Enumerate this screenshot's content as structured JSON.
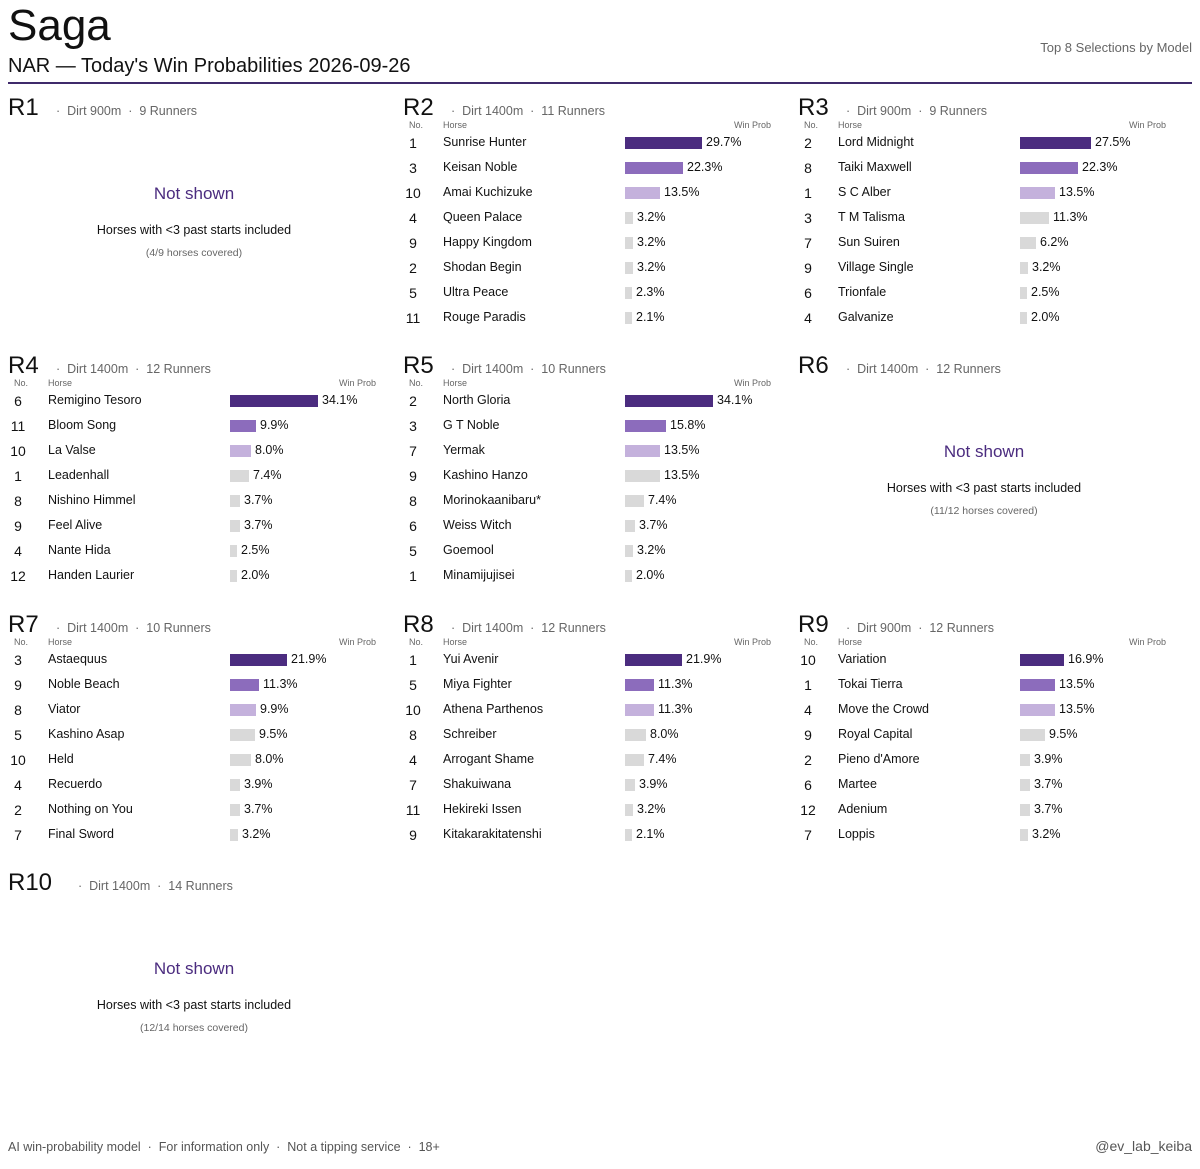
{
  "header": {
    "title": "Saga",
    "subtitle": "NAR — Today's Win Probabilities   2026-09-26",
    "top_right": "Top 8 Selections by Model"
  },
  "footer": {
    "left": "AI win-probability model  ·  For information only  ·  Not a tipping service  ·  18+",
    "right": "@ev_lab_keiba"
  },
  "column_labels": {
    "no": "No.",
    "horse": "Horse",
    "prob": "Win Prob"
  },
  "not_shown_title": "Not shown",
  "not_shown_note": "Horses with <3 past starts included",
  "colors": {
    "rank1": "#4b2c7f",
    "rank2": "#8c6cbc",
    "rank3": "#c4b1dc",
    "rest": "#d9d9d9",
    "accent": "#3f2a6b"
  },
  "chart_data": [
    {
      "type": "bar",
      "race": "R1",
      "meta": "·  Dirt 900m  ·  9 Runners",
      "shown": false,
      "coverage": "(4/9 horses covered)"
    },
    {
      "type": "bar",
      "race": "R2",
      "meta": "·  Dirt 1400m  ·  11 Runners",
      "shown": true,
      "numbers": [
        "1",
        "3",
        "10",
        "4",
        "9",
        "2",
        "5",
        "11"
      ],
      "categories": [
        "Sunrise Hunter",
        "Keisan Noble",
        "Amai Kuchizuke",
        "Queen Palace",
        "Happy Kingdom",
        "Shodan Begin",
        "Ultra Peace",
        "Rouge Paradis"
      ],
      "values": [
        29.7,
        22.3,
        13.5,
        3.2,
        3.2,
        3.2,
        2.3,
        2.1
      ]
    },
    {
      "type": "bar",
      "race": "R3",
      "meta": "·  Dirt 900m  ·  9 Runners",
      "shown": true,
      "numbers": [
        "2",
        "8",
        "1",
        "3",
        "7",
        "9",
        "6",
        "4"
      ],
      "categories": [
        "Lord Midnight",
        "Taiki Maxwell",
        "S C Alber",
        "T M Talisma",
        "Sun Suiren",
        "Village Single",
        "Trionfale",
        "Galvanize"
      ],
      "values": [
        27.5,
        22.3,
        13.5,
        11.3,
        6.2,
        3.2,
        2.5,
        2.0
      ]
    },
    {
      "type": "bar",
      "race": "R4",
      "meta": "·  Dirt 1400m  ·  12 Runners",
      "shown": true,
      "numbers": [
        "6",
        "11",
        "10",
        "1",
        "8",
        "9",
        "4",
        "12"
      ],
      "categories": [
        "Remigino Tesoro",
        "Bloom Song",
        "La Valse",
        "Leadenhall",
        "Nishino Himmel",
        "Feel Alive",
        "Nante Hida",
        "Handen Laurier"
      ],
      "values": [
        34.1,
        9.9,
        8.0,
        7.4,
        3.7,
        3.7,
        2.5,
        2.0
      ]
    },
    {
      "type": "bar",
      "race": "R5",
      "meta": "·  Dirt 1400m  ·  10 Runners",
      "shown": true,
      "numbers": [
        "2",
        "3",
        "7",
        "9",
        "8",
        "6",
        "5",
        "1"
      ],
      "categories": [
        "North Gloria",
        "G T Noble",
        "Yermak",
        "Kashino Hanzo",
        "Morinokaanibaru*",
        "Weiss Witch",
        "Goemool",
        "Minamijujisei"
      ],
      "values": [
        34.1,
        15.8,
        13.5,
        13.5,
        7.4,
        3.7,
        3.2,
        2.0
      ]
    },
    {
      "type": "bar",
      "race": "R6",
      "meta": "·  Dirt 1400m  ·  12 Runners",
      "shown": false,
      "coverage": "(11/12 horses covered)"
    },
    {
      "type": "bar",
      "race": "R7",
      "meta": "·  Dirt 1400m  ·  10 Runners",
      "shown": true,
      "numbers": [
        "3",
        "9",
        "8",
        "5",
        "10",
        "4",
        "2",
        "7"
      ],
      "categories": [
        "Astaequus",
        "Noble Beach",
        "Viator",
        "Kashino Asap",
        "Held",
        "Recuerdo",
        "Nothing on You",
        "Final Sword"
      ],
      "values": [
        21.9,
        11.3,
        9.9,
        9.5,
        8.0,
        3.9,
        3.7,
        3.2
      ]
    },
    {
      "type": "bar",
      "race": "R8",
      "meta": "·  Dirt 1400m  ·  12 Runners",
      "shown": true,
      "numbers": [
        "1",
        "5",
        "10",
        "8",
        "4",
        "7",
        "11",
        "9"
      ],
      "categories": [
        "Yui Avenir",
        "Miya Fighter",
        "Athena Parthenos",
        "Schreiber",
        "Arrogant Shame",
        "Shakuiwana",
        "Hekireki Issen",
        "Kitakarakitatenshi"
      ],
      "values": [
        21.9,
        11.3,
        11.3,
        8.0,
        7.4,
        3.9,
        3.2,
        2.1
      ]
    },
    {
      "type": "bar",
      "race": "R9",
      "meta": "·  Dirt 900m  ·  12 Runners",
      "shown": true,
      "numbers": [
        "10",
        "1",
        "4",
        "9",
        "2",
        "6",
        "12",
        "7"
      ],
      "categories": [
        "Variation",
        "Tokai Tierra",
        "Move the Crowd",
        "Royal Capital",
        "Pieno d'Amore",
        "Martee",
        "Adenium",
        "Loppis"
      ],
      "values": [
        16.9,
        13.5,
        13.5,
        9.5,
        3.9,
        3.7,
        3.7,
        3.2
      ]
    },
    {
      "type": "bar",
      "race": "R10",
      "meta": "·  Dirt 1400m  ·  14 Runners",
      "shown": false,
      "coverage": "(12/14 horses covered)"
    }
  ]
}
